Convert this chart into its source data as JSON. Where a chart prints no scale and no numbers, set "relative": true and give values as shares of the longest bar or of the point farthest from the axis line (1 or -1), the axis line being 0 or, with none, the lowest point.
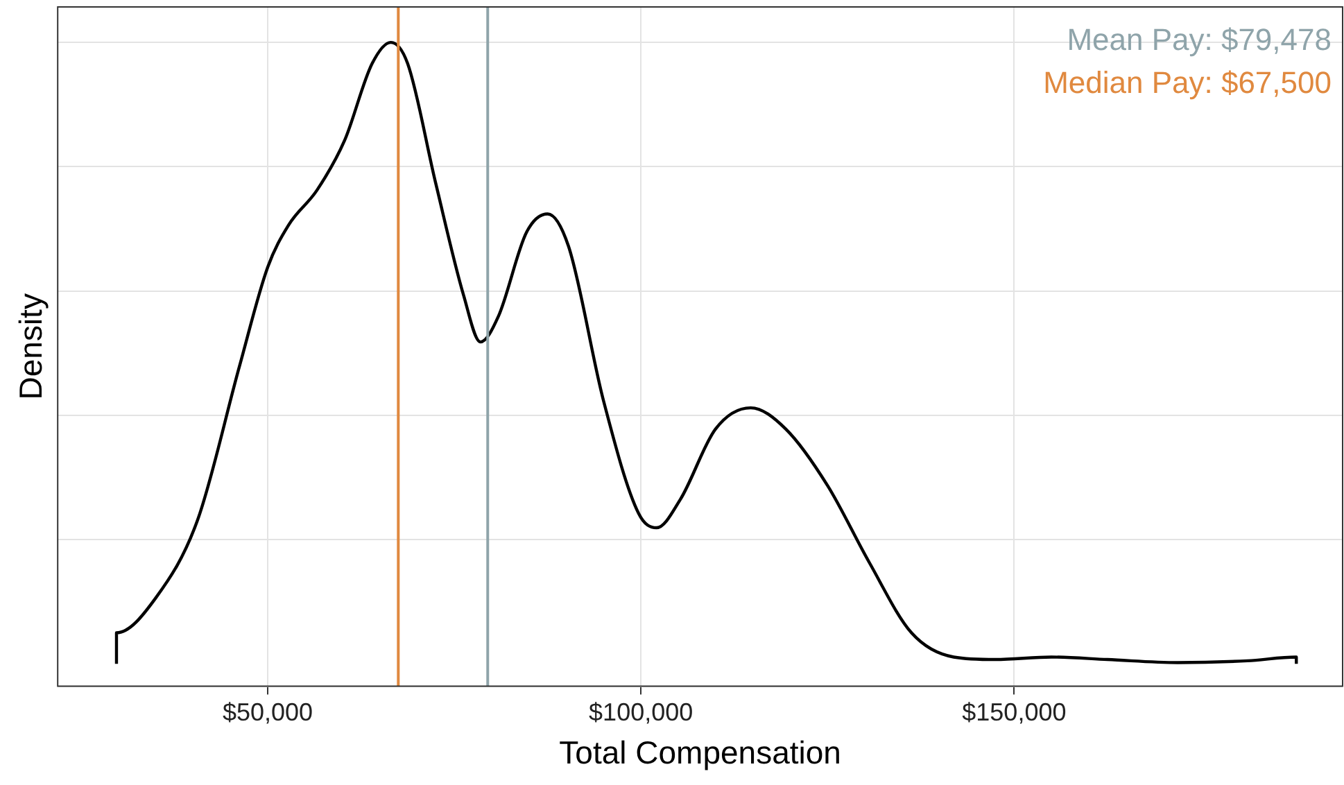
{
  "chart_data": {
    "type": "line",
    "xlabel": "Total Compensation",
    "ylabel": "Density",
    "relative": true,
    "x": [
      29750,
      29750,
      35000,
      40600,
      46250,
      50000,
      52800,
      56600,
      60300,
      64000,
      66500,
      68750,
      72500,
      76250,
      78500,
      80900,
      84700,
      87500,
      90300,
      95000,
      99700,
      102100,
      105300,
      110000,
      114700,
      119400,
      125000,
      130600,
      136250,
      141900,
      147500,
      155000,
      162500,
      171900,
      181250,
      187800,
      187800
    ],
    "series": [
      {
        "color": "#000000",
        "values": [
          0,
          0.05,
          0.106,
          0.231,
          0.48,
          0.638,
          0.706,
          0.762,
          0.842,
          0.966,
          1,
          0.966,
          0.774,
          0.593,
          0.518,
          0.559,
          0.695,
          0.724,
          0.672,
          0.423,
          0.242,
          0.219,
          0.265,
          0.378,
          0.412,
          0.378,
          0.287,
          0.163,
          0.05,
          0.011,
          0.007,
          0.011,
          0.007,
          0.002,
          0.005,
          0.011,
          0
        ]
      }
    ],
    "xlim": [
      21875,
      194000
    ],
    "xticks": [
      {
        "value": 50000,
        "label": "$50,000"
      },
      {
        "value": 100000,
        "label": "$100,000"
      },
      {
        "value": 150000,
        "label": "$150,000"
      }
    ],
    "ref_lines": [
      {
        "axis": "x",
        "value": 79478,
        "label": "Mean Pay: $79,478",
        "color": "#8fa4aa"
      },
      {
        "axis": "x",
        "value": 67500,
        "label": "Median Pay: $67,500",
        "color": "#e0893f"
      }
    ],
    "grid": true,
    "tick_labels": "x",
    "marker": "none",
    "line_style": "solid",
    "legend": false
  }
}
